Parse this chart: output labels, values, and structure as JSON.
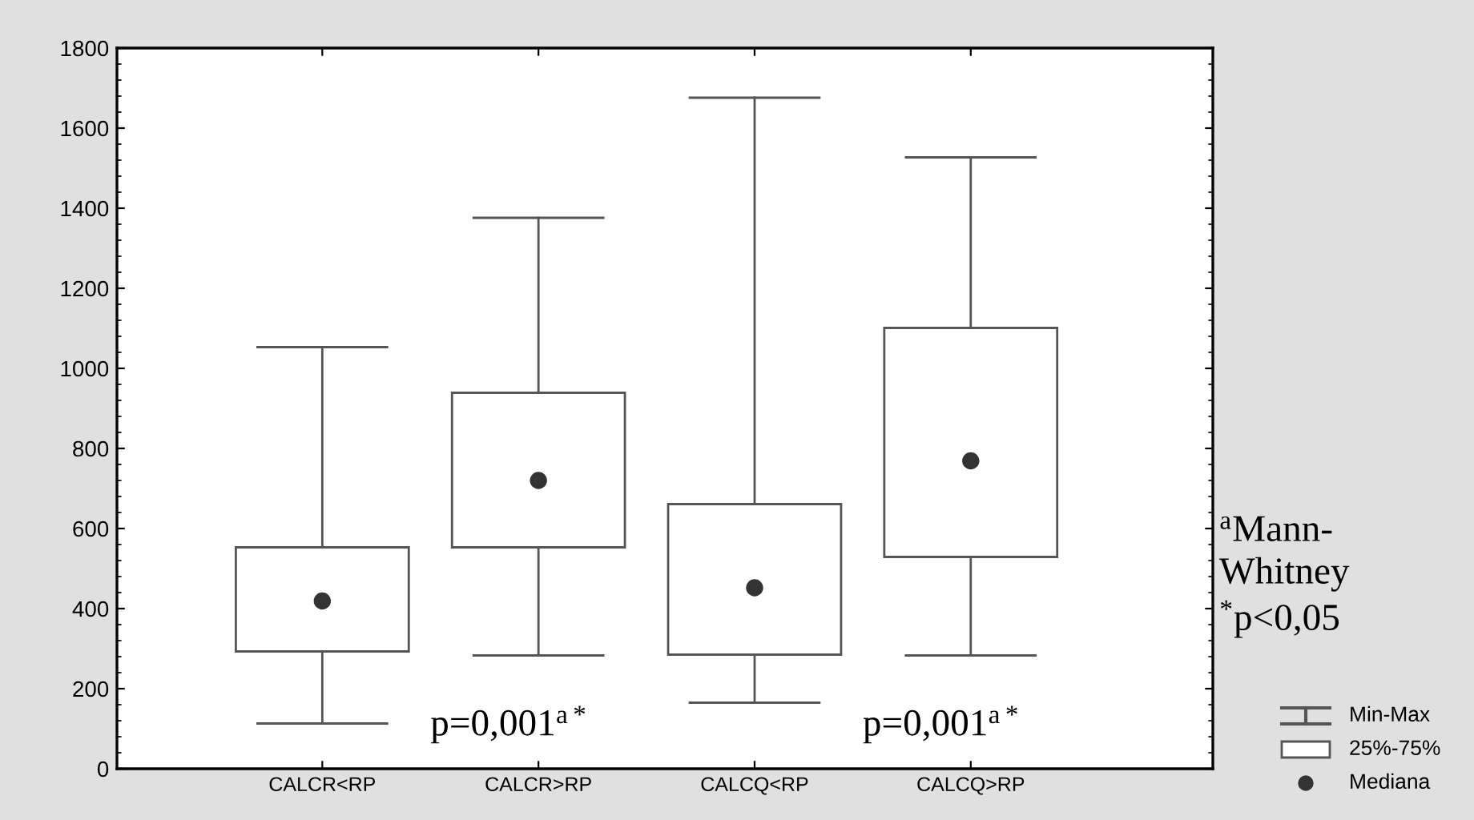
{
  "chart_data": {
    "type": "box",
    "categories": [
      "CALCR<RP",
      "CALCR>RP",
      "CALCQ<RP",
      "CALCQ>RP"
    ],
    "boxes": [
      {
        "low": 113,
        "q1": 293,
        "median": 419,
        "q3": 553,
        "high": 1053
      },
      {
        "low": 283,
        "q1": 553,
        "median": 720,
        "q3": 939,
        "high": 1376
      },
      {
        "low": 165,
        "q1": 285,
        "median": 452,
        "q3": 661,
        "high": 1676
      },
      {
        "low": 283,
        "q1": 529,
        "median": 769,
        "q3": 1101,
        "high": 1527
      }
    ],
    "color": "#ffffff",
    "marker": "circle",
    "ylim": [
      0,
      1800
    ],
    "yticks": [
      0,
      200,
      400,
      600,
      800,
      1000,
      1200,
      1400,
      1600,
      1800
    ],
    "grid": false,
    "annotations": [
      "p=0,001$^{a*}$",
      "p=0,001$^{a*}$",
      "$^{a}$Mann-\nWhitney\n$^{*}$p<0,05",
      "Min-Max",
      "25%-75%",
      "Mediana"
    ]
  }
}
